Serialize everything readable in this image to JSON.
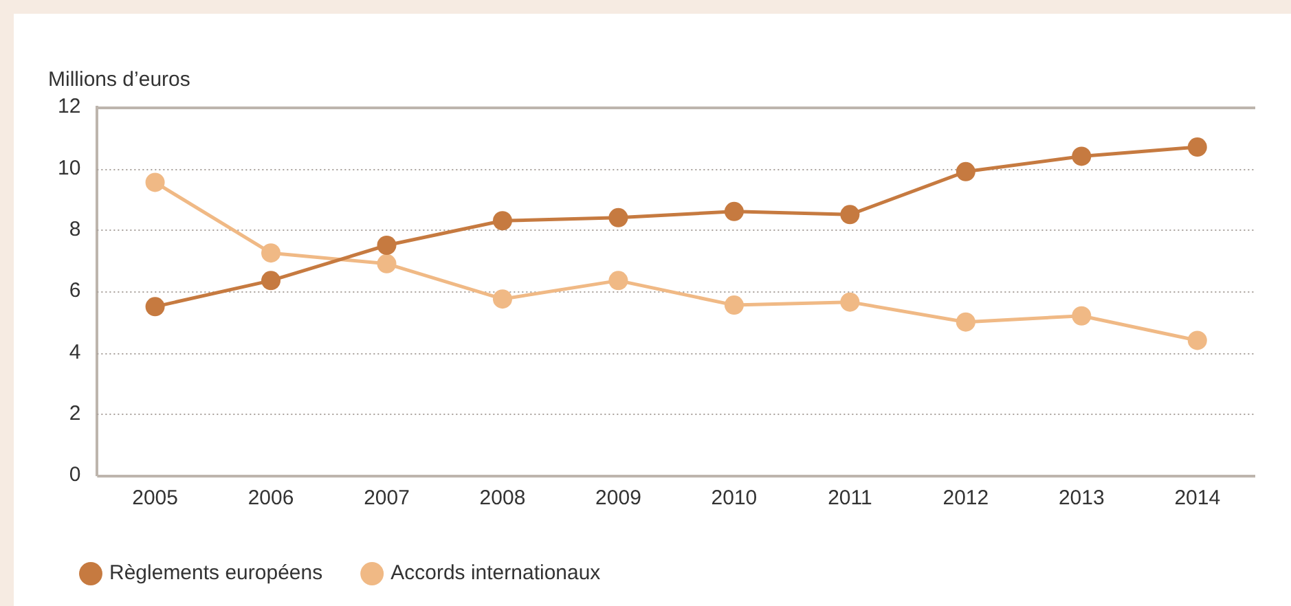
{
  "chart_data": {
    "type": "line",
    "ylabel": "Millions d’euros",
    "categories": [
      "2005",
      "2006",
      "2007",
      "2008",
      "2009",
      "2010",
      "2011",
      "2012",
      "2013",
      "2014"
    ],
    "series": [
      {
        "name": "Règlements européens",
        "color": "#c67a40",
        "values": [
          5.5,
          6.35,
          7.5,
          8.3,
          8.4,
          8.6,
          8.5,
          9.9,
          10.4,
          10.7
        ]
      },
      {
        "name": "Accords internationaux",
        "color": "#f0b985",
        "values": [
          9.55,
          7.25,
          6.9,
          5.75,
          6.35,
          5.55,
          5.65,
          5.0,
          5.2,
          4.4
        ]
      }
    ],
    "ylim": [
      0,
      12
    ],
    "yticks": [
      0,
      2,
      4,
      6,
      8,
      10,
      12
    ],
    "grid": "y",
    "legend": "bottom",
    "marker": "circle",
    "line_style": "solid"
  }
}
